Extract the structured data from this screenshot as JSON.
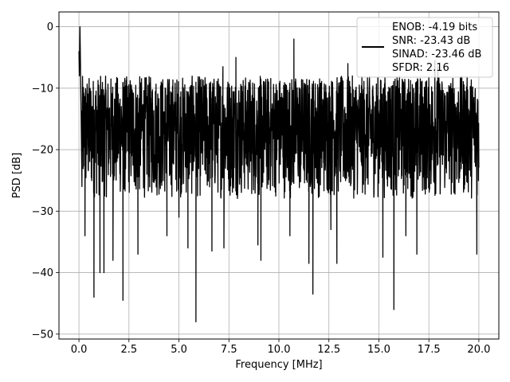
{
  "chart_data": {
    "type": "line",
    "title": "",
    "xlabel": "Frequency [MHz]",
    "ylabel": "PSD [dB]",
    "xlim": [
      -1,
      21
    ],
    "ylim": [
      -50.8,
      2.4
    ],
    "xticks": [
      0,
      2.5,
      5,
      7.5,
      10,
      12.5,
      15,
      17.5,
      20
    ],
    "xtick_labels": [
      "0.0",
      "2.5",
      "5.0",
      "7.5",
      "10.0",
      "12.5",
      "15.0",
      "17.5",
      "20.0"
    ],
    "yticks": [
      0,
      -10,
      -20,
      -30,
      -40,
      -50
    ],
    "ytick_labels": [
      "0",
      "−10",
      "−20",
      "−30",
      "−40",
      "−50"
    ],
    "grid": true,
    "legend_position": "top-right",
    "line_color": "#000000",
    "series": [
      {
        "name": "ENOB: -4.19 bits\nSNR: -23.43 dB\nSINAD: -23.46 dB\nSFDR: 2.16",
        "legend_lines": [
          "ENOB: -4.19 bits",
          "SNR: -23.43 dB",
          "SINAD: -23.46 dB",
          "SFDR: 2.16"
        ],
        "peak": {
          "x": 0.05,
          "y": 0
        },
        "start_values": [
          {
            "x": 0.0,
            "y": -4
          },
          {
            "x": 0.02,
            "y": -8
          },
          {
            "x": 0.05,
            "y": 0
          },
          {
            "x": 0.1,
            "y": -12
          },
          {
            "x": 0.15,
            "y": -26
          }
        ],
        "band": {
          "x_start": 0.15,
          "x_end": 20.0,
          "upper": -8,
          "lower": -28
        },
        "notable_dips": [
          {
            "x": 0.3,
            "y": -34
          },
          {
            "x": 0.75,
            "y": -44
          },
          {
            "x": 1.05,
            "y": -40
          },
          {
            "x": 1.25,
            "y": -40
          },
          {
            "x": 1.7,
            "y": -38
          },
          {
            "x": 2.2,
            "y": -44.5
          },
          {
            "x": 2.95,
            "y": -37
          },
          {
            "x": 4.4,
            "y": -34
          },
          {
            "x": 5.0,
            "y": -31
          },
          {
            "x": 5.45,
            "y": -36
          },
          {
            "x": 5.85,
            "y": -48
          },
          {
            "x": 6.65,
            "y": -36.5
          },
          {
            "x": 7.25,
            "y": -36
          },
          {
            "x": 8.95,
            "y": -35.5
          },
          {
            "x": 9.1,
            "y": -38
          },
          {
            "x": 10.55,
            "y": -34
          },
          {
            "x": 11.5,
            "y": -38.5
          },
          {
            "x": 11.7,
            "y": -43.5
          },
          {
            "x": 12.6,
            "y": -33
          },
          {
            "x": 12.9,
            "y": -38.5
          },
          {
            "x": 15.2,
            "y": -37.5
          },
          {
            "x": 15.75,
            "y": -46
          },
          {
            "x": 16.35,
            "y": -34
          },
          {
            "x": 16.9,
            "y": -37
          },
          {
            "x": 19.9,
            "y": -37
          }
        ],
        "notable_peaks": [
          {
            "x": 7.2,
            "y": -6.5
          },
          {
            "x": 7.85,
            "y": -5
          },
          {
            "x": 10.75,
            "y": -2
          },
          {
            "x": 13.45,
            "y": -6
          },
          {
            "x": 17.8,
            "y": -5.5
          },
          {
            "x": 17.95,
            "y": -6.5
          }
        ]
      }
    ]
  }
}
